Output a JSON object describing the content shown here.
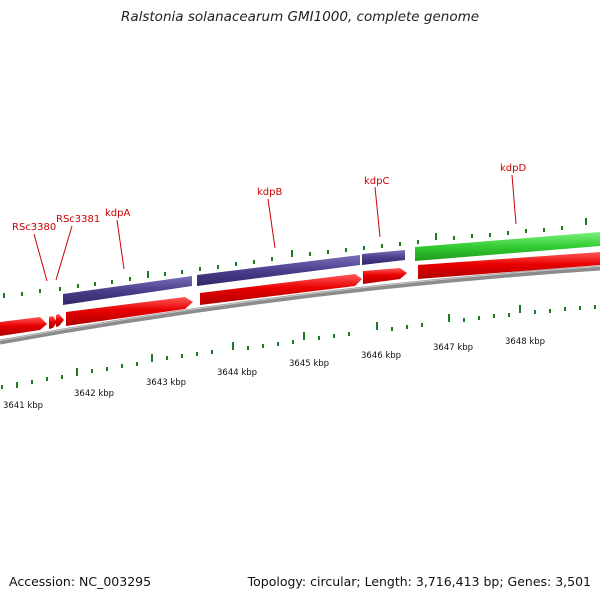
{
  "title": "Ralstonia solanacearum GMI1000, complete genome",
  "accession": "Accession: NC_003295",
  "summary": "Topology: circular; Length: 3,716,413 bp; Genes: 3,501",
  "colors": {
    "gene_label": "#cc0000",
    "forward_strand": "#e80000",
    "operon_purple": "#4a3f8c",
    "operon_green": "#33cc33",
    "tick_green": "#1e7a1e",
    "backbone": "#8c8c8c"
  },
  "gene_labels": [
    "RSc3380",
    "RSc3381",
    "kdpA",
    "kdpB",
    "kdpC",
    "kdpD"
  ],
  "kbp_labels": [
    "3641 kbp",
    "3642 kbp",
    "3643 kbp",
    "3644 kbp",
    "3645 kbp",
    "3646 kbp",
    "3647 kbp",
    "3648 kbp"
  ]
}
